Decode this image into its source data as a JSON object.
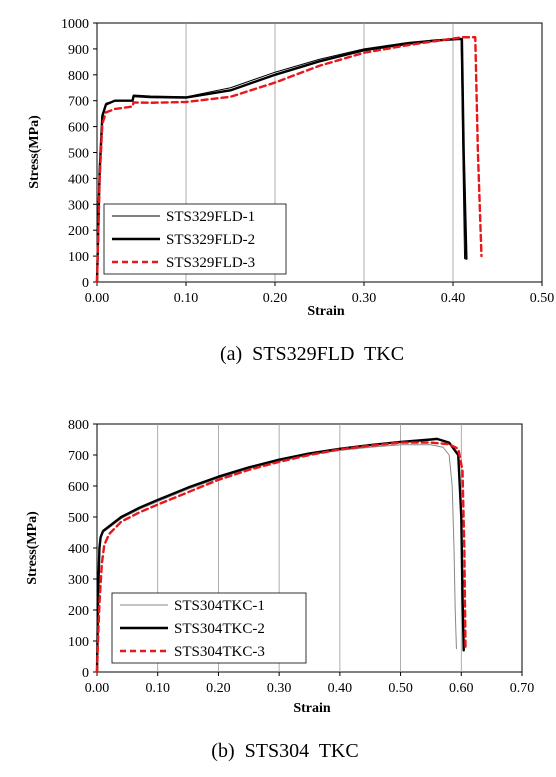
{
  "chart_data": [
    {
      "type": "line",
      "caption": "(a)  STS329FLD  TKC",
      "xlabel": "Strain",
      "ylabel": "Stress(MPa)",
      "xlim": [
        0,
        0.5
      ],
      "ylim": [
        0,
        1000
      ],
      "xticks": [
        "0.00",
        "0.10",
        "0.20",
        "0.30",
        "0.40",
        "0.50"
      ],
      "yticks": [
        "0",
        "100",
        "200",
        "300",
        "400",
        "500",
        "600",
        "700",
        "800",
        "900",
        "1000"
      ],
      "grid": "vertical",
      "legend_position": "bottom-left",
      "series": [
        {
          "name": "STS329FLD-1",
          "color": "#000000",
          "style": "thin",
          "x": [
            0,
            0.003,
            0.006,
            0.01,
            0.02,
            0.035,
            0.04,
            0.041,
            0.06,
            0.1,
            0.15,
            0.2,
            0.25,
            0.3,
            0.35,
            0.38,
            0.405,
            0.409,
            0.411,
            0.413
          ],
          "y": [
            0,
            450,
            650,
            690,
            700,
            700,
            702,
            722,
            718,
            715,
            750,
            810,
            860,
            900,
            925,
            935,
            940,
            940,
            500,
            90
          ]
        },
        {
          "name": "STS329FLD-2",
          "color": "#000000",
          "style": "thick",
          "x": [
            0,
            0.003,
            0.006,
            0.01,
            0.02,
            0.035,
            0.04,
            0.041,
            0.06,
            0.1,
            0.15,
            0.2,
            0.25,
            0.3,
            0.35,
            0.38,
            0.405,
            0.41,
            0.412,
            0.415
          ],
          "y": [
            0,
            430,
            640,
            685,
            700,
            700,
            700,
            718,
            714,
            712,
            740,
            800,
            852,
            895,
            920,
            932,
            938,
            938,
            500,
            90
          ]
        },
        {
          "name": "STS329FLD-3",
          "color": "#e8171b",
          "style": "dashed",
          "x": [
            0,
            0.003,
            0.006,
            0.01,
            0.02,
            0.035,
            0.04,
            0.041,
            0.06,
            0.1,
            0.15,
            0.2,
            0.25,
            0.3,
            0.35,
            0.38,
            0.41,
            0.425,
            0.428,
            0.432
          ],
          "y": [
            0,
            400,
            610,
            655,
            668,
            675,
            678,
            693,
            692,
            695,
            715,
            770,
            835,
            885,
            915,
            930,
            945,
            945,
            500,
            100
          ]
        }
      ]
    },
    {
      "type": "line",
      "caption": "(b)  STS304  TKC",
      "xlabel": "Strain",
      "ylabel": "Stress(MPa)",
      "xlim": [
        0,
        0.7
      ],
      "ylim": [
        0,
        800
      ],
      "xticks": [
        "0.00",
        "0.10",
        "0.20",
        "0.30",
        "0.40",
        "0.50",
        "0.60",
        "0.70"
      ],
      "yticks": [
        "0",
        "100",
        "200",
        "300",
        "400",
        "500",
        "600",
        "700",
        "800"
      ],
      "grid": "vertical",
      "legend_position": "bottom-left",
      "series": [
        {
          "name": "STS304TKC-1",
          "color": "#000000",
          "style": "thin",
          "x": [
            0,
            0.002,
            0.004,
            0.006,
            0.01,
            0.02,
            0.04,
            0.07,
            0.1,
            0.15,
            0.2,
            0.25,
            0.3,
            0.35,
            0.4,
            0.45,
            0.5,
            0.55,
            0.57,
            0.58,
            0.585,
            0.588,
            0.59,
            0.592
          ],
          "y": [
            0,
            250,
            390,
            430,
            450,
            465,
            495,
            525,
            550,
            590,
            625,
            655,
            680,
            700,
            715,
            725,
            733,
            733,
            725,
            700,
            600,
            400,
            200,
            75
          ]
        },
        {
          "name": "STS304TKC-2",
          "color": "#000000",
          "style": "thick",
          "x": [
            0,
            0.002,
            0.004,
            0.006,
            0.01,
            0.02,
            0.04,
            0.07,
            0.1,
            0.15,
            0.2,
            0.25,
            0.3,
            0.35,
            0.4,
            0.45,
            0.5,
            0.55,
            0.56,
            0.58,
            0.595,
            0.6,
            0.602,
            0.604
          ],
          "y": [
            0,
            260,
            400,
            435,
            455,
            470,
            500,
            530,
            555,
            595,
            630,
            660,
            685,
            705,
            720,
            732,
            742,
            750,
            752,
            740,
            700,
            500,
            250,
            70
          ]
        },
        {
          "name": "STS304TKC-3",
          "color": "#e8171b",
          "style": "dashed",
          "x": [
            0,
            0.002,
            0.004,
            0.008,
            0.012,
            0.02,
            0.04,
            0.07,
            0.1,
            0.15,
            0.2,
            0.25,
            0.3,
            0.35,
            0.4,
            0.45,
            0.5,
            0.55,
            0.58,
            0.595,
            0.602,
            0.605,
            0.607
          ],
          "y": [
            0,
            120,
            220,
            350,
            410,
            445,
            485,
            515,
            540,
            580,
            620,
            652,
            678,
            700,
            718,
            730,
            740,
            740,
            735,
            720,
            650,
            400,
            70
          ]
        }
      ]
    }
  ]
}
